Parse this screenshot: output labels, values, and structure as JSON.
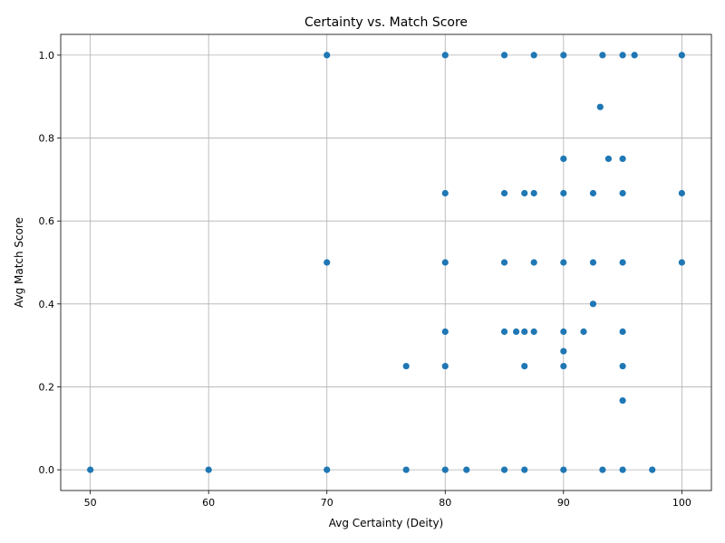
{
  "chart_data": {
    "type": "scatter",
    "title": "Certainty vs. Match Score",
    "xlabel": "Avg Certainty (Deity)",
    "ylabel": "Avg Match Score",
    "xlim": [
      47.5,
      102.5
    ],
    "ylim": [
      -0.05,
      1.05
    ],
    "xticks": [
      50,
      60,
      70,
      80,
      90,
      100
    ],
    "xtick_labels": [
      "50",
      "60",
      "70",
      "80",
      "90",
      "100"
    ],
    "yticks": [
      0.0,
      0.2,
      0.4,
      0.6,
      0.8,
      1.0
    ],
    "ytick_labels": [
      "0.0",
      "0.2",
      "0.4",
      "0.6",
      "0.8",
      "1.0"
    ],
    "grid": true,
    "color": "#1f77b4",
    "points": [
      [
        50,
        0
      ],
      [
        60,
        0
      ],
      [
        70,
        0
      ],
      [
        76.7,
        0
      ],
      [
        80,
        0
      ],
      [
        81.8,
        0
      ],
      [
        85,
        0
      ],
      [
        86.7,
        0
      ],
      [
        90,
        0
      ],
      [
        93.3,
        0
      ],
      [
        95,
        0
      ],
      [
        97.5,
        0
      ],
      [
        95,
        0.167
      ],
      [
        76.7,
        0.25
      ],
      [
        80,
        0.25
      ],
      [
        86.7,
        0.25
      ],
      [
        90,
        0.25
      ],
      [
        95,
        0.25
      ],
      [
        90,
        0.286
      ],
      [
        80,
        0.333
      ],
      [
        85,
        0.333
      ],
      [
        86,
        0.333
      ],
      [
        86.7,
        0.333
      ],
      [
        87.5,
        0.333
      ],
      [
        90,
        0.333
      ],
      [
        91.7,
        0.333
      ],
      [
        95,
        0.333
      ],
      [
        92.5,
        0.4
      ],
      [
        70,
        0.5
      ],
      [
        80,
        0.5
      ],
      [
        85,
        0.5
      ],
      [
        87.5,
        0.5
      ],
      [
        90,
        0.5
      ],
      [
        92.5,
        0.5
      ],
      [
        95,
        0.5
      ],
      [
        100,
        0.5
      ],
      [
        80,
        0.667
      ],
      [
        85,
        0.667
      ],
      [
        86.7,
        0.667
      ],
      [
        87.5,
        0.667
      ],
      [
        90,
        0.667
      ],
      [
        92.5,
        0.667
      ],
      [
        95,
        0.667
      ],
      [
        100,
        0.667
      ],
      [
        90,
        0.75
      ],
      [
        93.8,
        0.75
      ],
      [
        95,
        0.75
      ],
      [
        93.1,
        0.875
      ],
      [
        70,
        1
      ],
      [
        80,
        1
      ],
      [
        85,
        1
      ],
      [
        87.5,
        1
      ],
      [
        90,
        1
      ],
      [
        93.3,
        1
      ],
      [
        95,
        1
      ],
      [
        96,
        1
      ],
      [
        100,
        1
      ]
    ]
  }
}
